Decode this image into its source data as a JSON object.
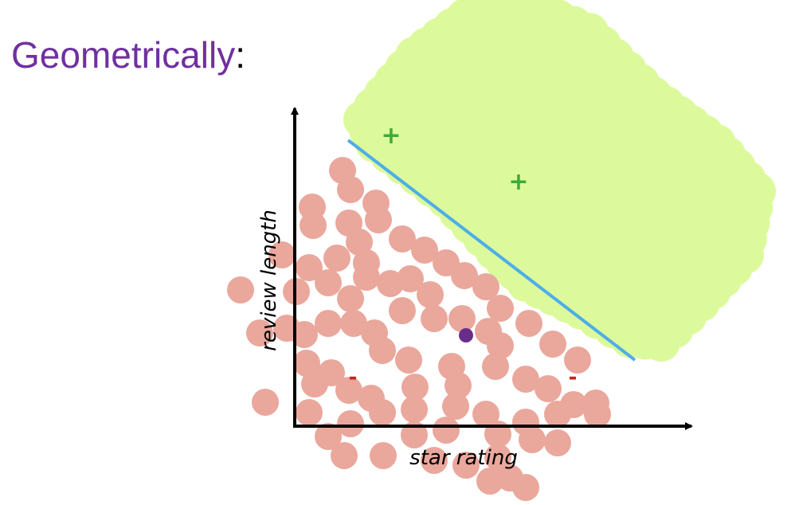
{
  "title": {
    "main": "Geometrically",
    "suffix": ":"
  },
  "axes": {
    "x_label": "star rating",
    "y_label": "review length"
  },
  "region_signs": {
    "positive": "+",
    "negative": "-"
  },
  "colors": {
    "title": "#7030a0",
    "positive_region": "#dcfa9c",
    "negative_points": "#eaa79c",
    "positive_mark": "#3faa3c",
    "negative_mark": "#c0281f",
    "boundary_line": "#4daee8",
    "query_point": "#6a2c8a",
    "axes": "#000000"
  }
}
